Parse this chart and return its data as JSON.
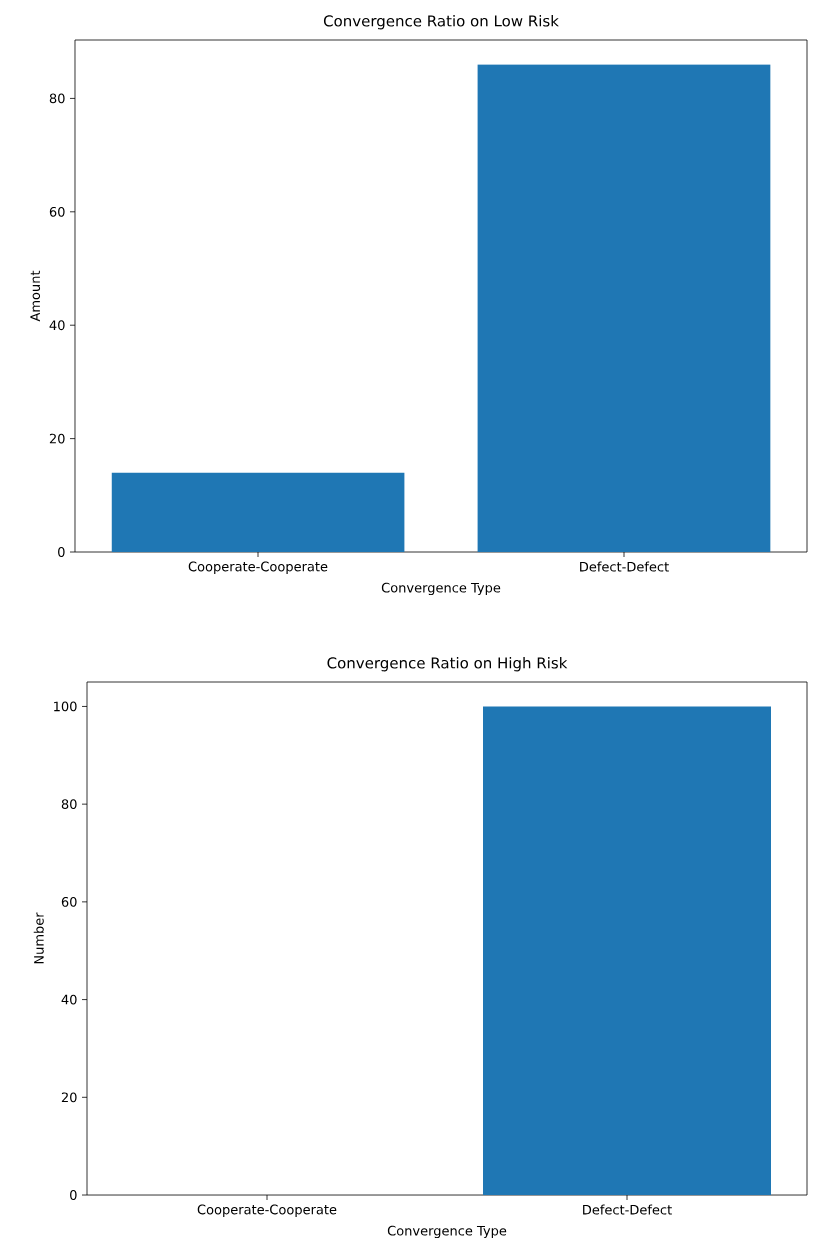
{
  "chart_data": [
    {
      "type": "bar",
      "title": "Convergence Ratio on Low Risk",
      "xlabel": "Convergence Type",
      "ylabel": "Amount",
      "categories": [
        "Cooperate-Cooperate",
        "Defect-Defect"
      ],
      "values": [
        14,
        86
      ],
      "color": "#1f77b4",
      "ylim": [
        0,
        90.3
      ],
      "yticks": [
        0,
        20,
        40,
        60,
        80
      ]
    },
    {
      "type": "bar",
      "title": "Convergence Ratio on High Risk",
      "xlabel": "Convergence Type",
      "ylabel": "Number",
      "categories": [
        "Cooperate-Cooperate",
        "Defect-Defect"
      ],
      "values": [
        0,
        100
      ],
      "color": "#1f77b4",
      "ylim": [
        0,
        105
      ],
      "yticks": [
        0,
        20,
        40,
        60,
        80,
        100
      ]
    }
  ]
}
